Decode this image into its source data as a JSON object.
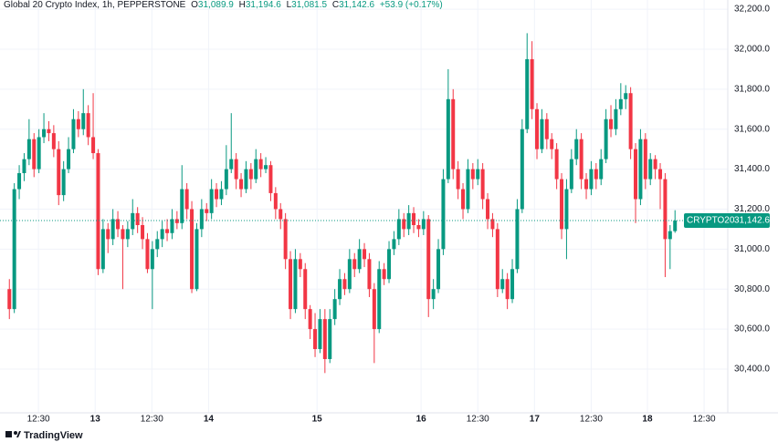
{
  "chart_data": {
    "type": "candlestick",
    "title": "Global 20 Crypto Index, 1h, PEPPERSTONE",
    "ohlc_legend": [
      {
        "label": "O",
        "value": "31,089.9"
      },
      {
        "label": "H",
        "value": "31,194.6"
      },
      {
        "label": "L",
        "value": "31,081.5"
      },
      {
        "label": "C",
        "value": "31,142.6"
      }
    ],
    "change": "+53.9 (+0.17%)",
    "symbol": "CRYPTO20",
    "last_price": {
      "value": 31142.6,
      "label": "31,142.6"
    },
    "brand": "TradingView",
    "up_color": "#089981",
    "down_color": "#f23645",
    "grid": true,
    "ylim": [
      30181,
      32246
    ],
    "yticks": [
      {
        "value": 30400,
        "label": "30,400.0"
      },
      {
        "value": 30600,
        "label": "30,600.0"
      },
      {
        "value": 30800,
        "label": "30,800.0"
      },
      {
        "value": 31000,
        "label": "31,000.0"
      },
      {
        "value": 31200,
        "label": "31,200.0"
      },
      {
        "value": 31400,
        "label": "31,400.0"
      },
      {
        "value": 31600,
        "label": "31,600.0"
      },
      {
        "value": 31800,
        "label": "31,800.0"
      },
      {
        "value": 32000,
        "label": "32,000.0"
      },
      {
        "value": 32200,
        "label": "32,200.0"
      }
    ],
    "xlim": [
      -1.9,
      145.7
    ],
    "xticks": [
      {
        "value": 5.9,
        "label": "12:30"
      },
      {
        "value": 17.4,
        "label": "13"
      },
      {
        "value": 28.9,
        "label": "12:30"
      },
      {
        "value": 40.4,
        "label": "14"
      },
      {
        "value": 62.4,
        "label": "15"
      },
      {
        "value": 83.5,
        "label": "16"
      },
      {
        "value": 95,
        "label": "12:30"
      },
      {
        "value": 106.5,
        "label": "17"
      },
      {
        "value": 118,
        "label": "12:30"
      },
      {
        "value": 129.4,
        "label": "18"
      },
      {
        "value": 140.9,
        "label": "12:30"
      }
    ],
    "bold_xticks": [
      1,
      3,
      4,
      5,
      7,
      9
    ],
    "ohlc": [
      [
        30800,
        30850,
        30650,
        30700
      ],
      [
        30700,
        31330,
        30680,
        31300
      ],
      [
        31300,
        31420,
        31250,
        31380
      ],
      [
        31380,
        31480,
        31340,
        31450
      ],
      [
        31450,
        31650,
        31420,
        31550
      ],
      [
        31550,
        31580,
        31360,
        31400
      ],
      [
        31400,
        31600,
        31380,
        31560
      ],
      [
        31560,
        31680,
        31530,
        31600
      ],
      [
        31600,
        31640,
        31540,
        31580
      ],
      [
        31580,
        31620,
        31460,
        31500
      ],
      [
        31500,
        31540,
        31220,
        31270
      ],
      [
        31270,
        31440,
        31240,
        31400
      ],
      [
        31400,
        31560,
        31380,
        31500
      ],
      [
        31500,
        31700,
        31480,
        31650
      ],
      [
        31650,
        31690,
        31560,
        31600
      ],
      [
        31600,
        31800,
        31570,
        31680
      ],
      [
        31680,
        31720,
        31520,
        31560
      ],
      [
        31560,
        31780,
        31450,
        31480
      ],
      [
        31480,
        31500,
        30870,
        30900
      ],
      [
        30900,
        31150,
        30880,
        31100
      ],
      [
        31100,
        31130,
        30980,
        31050
      ],
      [
        31050,
        31200,
        31020,
        31150
      ],
      [
        31150,
        31190,
        31060,
        31100
      ],
      [
        31100,
        31120,
        30800,
        31050
      ],
      [
        31050,
        31140,
        31010,
        31100
      ],
      [
        31100,
        31250,
        31070,
        31180
      ],
      [
        31180,
        31210,
        31080,
        31120
      ],
      [
        31120,
        31160,
        31000,
        31050
      ],
      [
        31050,
        31080,
        30880,
        30900
      ],
      [
        30900,
        31040,
        30700,
        31000
      ],
      [
        31000,
        31090,
        30960,
        31050
      ],
      [
        31050,
        31140,
        31010,
        31100
      ],
      [
        31100,
        31150,
        31040,
        31080
      ],
      [
        31080,
        31200,
        31050,
        31150
      ],
      [
        31150,
        31190,
        31100,
        31130
      ],
      [
        31130,
        31420,
        31100,
        31300
      ],
      [
        31300,
        31330,
        31150,
        31200
      ],
      [
        31200,
        31240,
        30780,
        30800
      ],
      [
        30800,
        31130,
        30790,
        31100
      ],
      [
        31100,
        31250,
        31060,
        31200
      ],
      [
        31200,
        31230,
        31140,
        31180
      ],
      [
        31180,
        31350,
        31150,
        31300
      ],
      [
        31300,
        31330,
        31210,
        31250
      ],
      [
        31250,
        31340,
        31220,
        31300
      ],
      [
        31300,
        31520,
        31270,
        31400
      ],
      [
        31400,
        31680,
        31380,
        31450
      ],
      [
        31450,
        31480,
        31300,
        31350
      ],
      [
        31350,
        31380,
        31260,
        31300
      ],
      [
        31300,
        31440,
        31280,
        31400
      ],
      [
        31400,
        31430,
        31300,
        31350
      ],
      [
        31350,
        31500,
        31330,
        31450
      ],
      [
        31450,
        31480,
        31360,
        31400
      ],
      [
        31400,
        31460,
        31380,
        31420
      ],
      [
        31420,
        31440,
        31240,
        31280
      ],
      [
        31280,
        31310,
        31150,
        31200
      ],
      [
        31200,
        31230,
        31100,
        31150
      ],
      [
        31150,
        31180,
        30900,
        30950
      ],
      [
        30950,
        30990,
        30650,
        30700
      ],
      [
        30700,
        31000,
        30680,
        30950
      ],
      [
        30950,
        30980,
        30860,
        30900
      ],
      [
        30900,
        30930,
        30650,
        30700
      ],
      [
        30700,
        30720,
        30550,
        30600
      ],
      [
        30600,
        30680,
        30460,
        30500
      ],
      [
        30500,
        30700,
        30480,
        30650
      ],
      [
        30650,
        30700,
        30380,
        30450
      ],
      [
        30450,
        30700,
        30430,
        30650
      ],
      [
        30650,
        30800,
        30620,
        30750
      ],
      [
        30750,
        30900,
        30720,
        30850
      ],
      [
        30850,
        30880,
        30770,
        30800
      ],
      [
        30800,
        31000,
        30780,
        30950
      ],
      [
        30950,
        30980,
        30860,
        30900
      ],
      [
        30900,
        31050,
        30880,
        31000
      ],
      [
        31000,
        31030,
        30910,
        30950
      ],
      [
        30950,
        30980,
        30760,
        30800
      ],
      [
        30800,
        30830,
        30430,
        30600
      ],
      [
        30600,
        30940,
        30580,
        30900
      ],
      [
        30900,
        30930,
        30820,
        30850
      ],
      [
        30850,
        31040,
        30830,
        31000
      ],
      [
        31000,
        31090,
        30970,
        31050
      ],
      [
        31050,
        31200,
        31020,
        31150
      ],
      [
        31150,
        31180,
        31060,
        31100
      ],
      [
        31100,
        31220,
        31070,
        31180
      ],
      [
        31180,
        31210,
        31080,
        31120
      ],
      [
        31120,
        31150,
        31060,
        31100
      ],
      [
        31100,
        31190,
        31070,
        31150
      ],
      [
        31150,
        31170,
        30660,
        30750
      ],
      [
        30750,
        30850,
        30700,
        30800
      ],
      [
        30800,
        31050,
        30780,
        31000
      ],
      [
        31000,
        31400,
        30970,
        31350
      ],
      [
        31350,
        31900,
        31330,
        31750
      ],
      [
        31750,
        31800,
        31350,
        31400
      ],
      [
        31400,
        31440,
        31250,
        31300
      ],
      [
        31300,
        31330,
        31150,
        31200
      ],
      [
        31200,
        31450,
        31180,
        31400
      ],
      [
        31400,
        31430,
        31300,
        31350
      ],
      [
        31350,
        31450,
        31320,
        31400
      ],
      [
        31400,
        31430,
        31200,
        31250
      ],
      [
        31250,
        31280,
        31100,
        31150
      ],
      [
        31150,
        31180,
        31060,
        31100
      ],
      [
        31100,
        31130,
        30760,
        30800
      ],
      [
        30800,
        30900,
        30780,
        30850
      ],
      [
        30850,
        30880,
        30700,
        30750
      ],
      [
        30750,
        30950,
        30730,
        30900
      ],
      [
        30900,
        31250,
        30880,
        31200
      ],
      [
        31200,
        31650,
        31180,
        31600
      ],
      [
        31600,
        32080,
        31580,
        31950
      ],
      [
        31950,
        32040,
        31650,
        31700
      ],
      [
        31700,
        31730,
        31450,
        31500
      ],
      [
        31500,
        31700,
        31480,
        31650
      ],
      [
        31650,
        31680,
        31500,
        31550
      ],
      [
        31550,
        31580,
        31450,
        31500
      ],
      [
        31500,
        31530,
        31300,
        31350
      ],
      [
        31350,
        31380,
        31050,
        31100
      ],
      [
        31100,
        31350,
        30950,
        31300
      ],
      [
        31300,
        31500,
        31280,
        31450
      ],
      [
        31450,
        31600,
        31420,
        31550
      ],
      [
        31550,
        31580,
        31300,
        31350
      ],
      [
        31350,
        31380,
        31250,
        31300
      ],
      [
        31300,
        31440,
        31270,
        31400
      ],
      [
        31400,
        31430,
        31300,
        31350
      ],
      [
        31350,
        31500,
        31320,
        31450
      ],
      [
        31450,
        31700,
        31430,
        31650
      ],
      [
        31650,
        31720,
        31560,
        31600
      ],
      [
        31600,
        31750,
        31570,
        31700
      ],
      [
        31700,
        31830,
        31670,
        31750
      ],
      [
        31750,
        31820,
        31700,
        31780
      ],
      [
        31780,
        31810,
        31450,
        31500
      ],
      [
        31500,
        31530,
        31130,
        31250
      ],
      [
        31250,
        31600,
        31220,
        31550
      ],
      [
        31550,
        31580,
        31300,
        31350
      ],
      [
        31350,
        31480,
        31320,
        31450
      ],
      [
        31450,
        31470,
        31350,
        31400
      ],
      [
        31400,
        31430,
        31200,
        31350
      ],
      [
        31350,
        31380,
        30860,
        31050
      ],
      [
        31050,
        31120,
        30900,
        31089.9
      ],
      [
        31089.9,
        31194.6,
        31081.5,
        31142.6
      ]
    ]
  }
}
